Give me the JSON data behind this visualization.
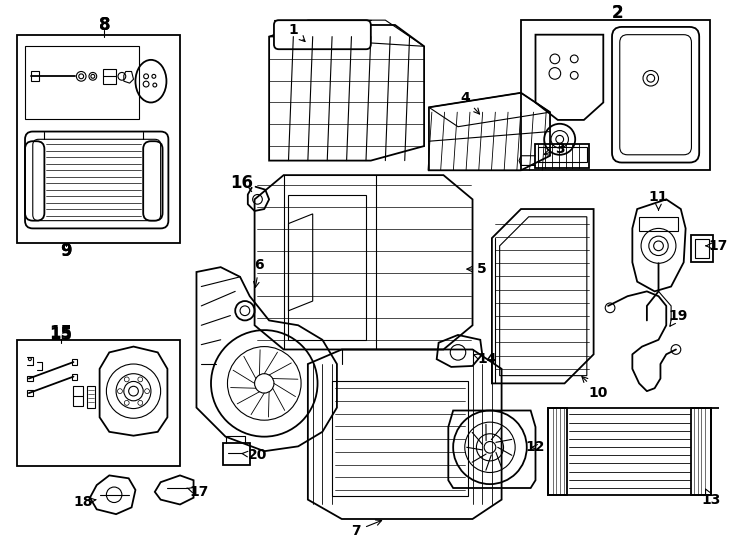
{
  "bg_color": "#ffffff",
  "line_color": "#000000",
  "figsize": [
    7.34,
    5.4
  ],
  "dpi": 100
}
